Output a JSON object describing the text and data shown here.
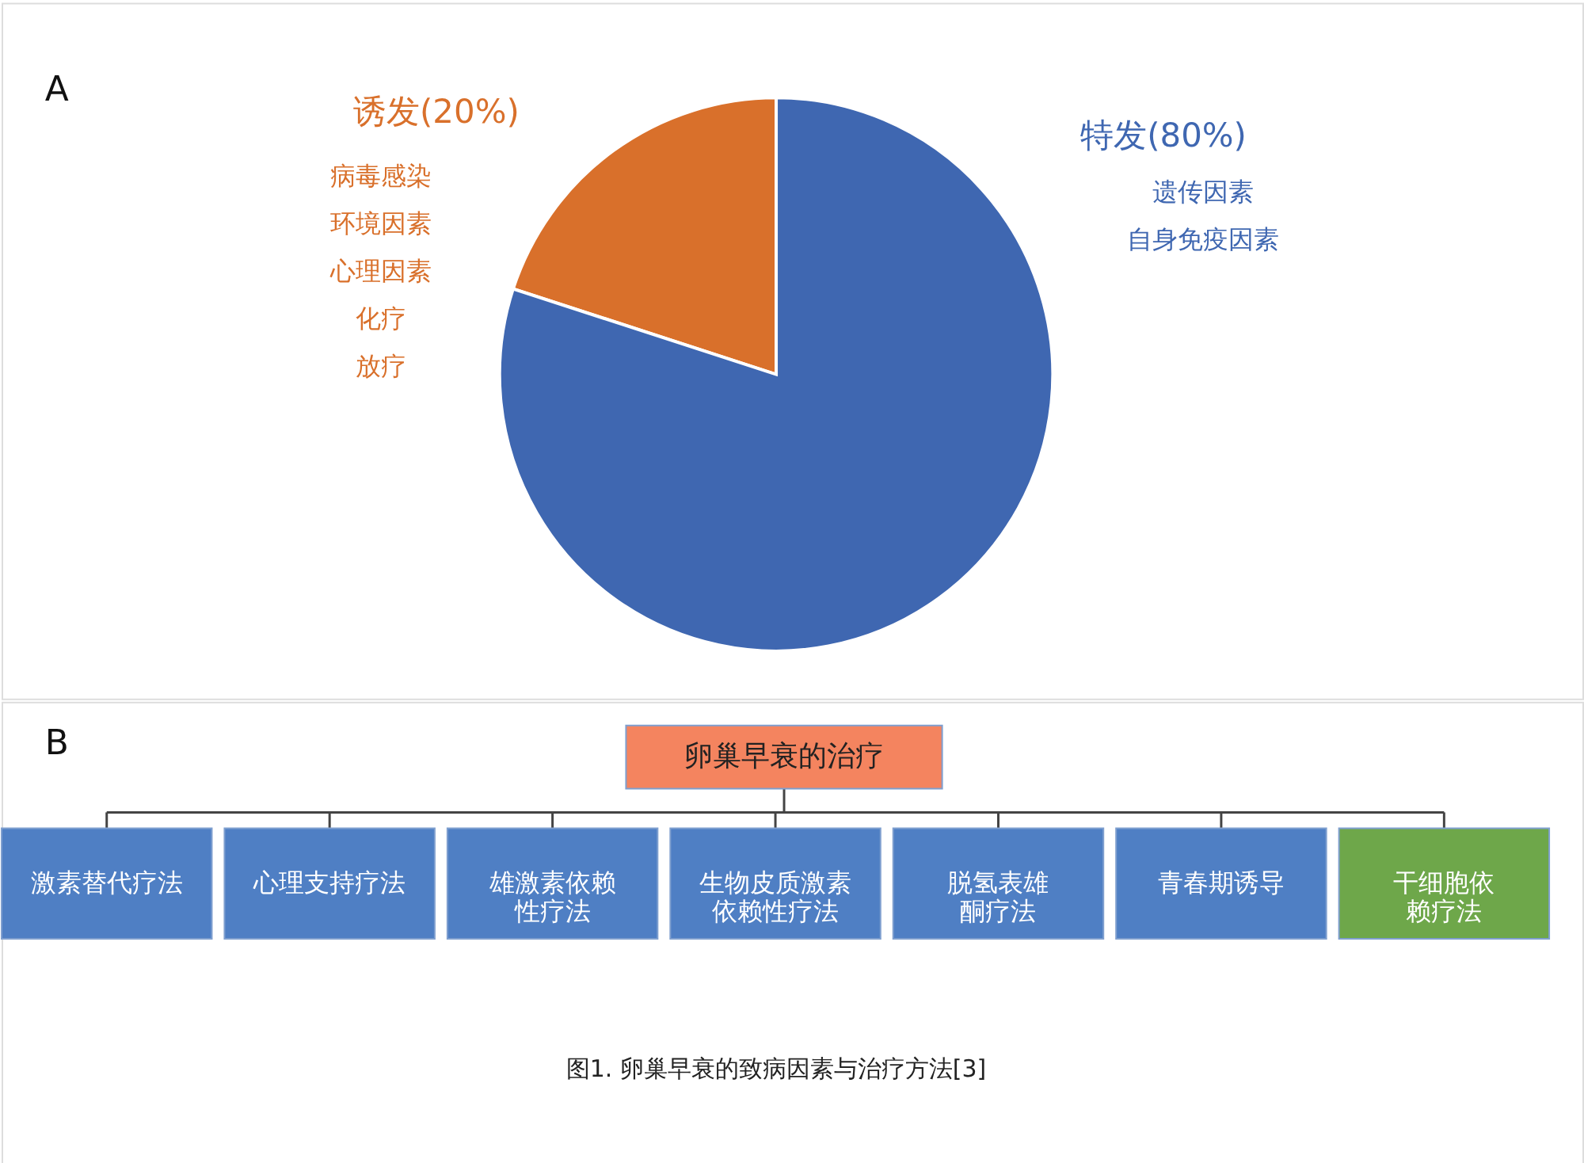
{
  "chart_data": [
    {
      "type": "pie",
      "categories": [
        "诱发(20%)",
        "特发(80%)"
      ],
      "values": [
        20,
        80
      ],
      "colors": [
        "#d9702b",
        "#3f67b1"
      ],
      "annotations": [
        "A",
        "病毒感染",
        "环境因素",
        "心理因素",
        "化疗",
        "放疗",
        "遗传因素",
        "自身免疫因素"
      ]
    },
    {
      "type": "other",
      "title": "卵巢早衰的治疗",
      "categories": [
        "激素替代疗法",
        "心理支持疗法",
        "雄激素依赖性疗法",
        "生物皮质激素依赖性疗法",
        "脱氢表雄酮疗法",
        "青春期诱导",
        "干细胞依赖疗法"
      ],
      "colors": [
        "#4f7fc4",
        "#4f7fc4",
        "#4f7fc4",
        "#4f7fc4",
        "#4f7fc4",
        "#4f7fc4",
        "#6ea74a"
      ],
      "annotations": [
        "B",
        "图1. 卵巢早衰的致病因素与治疗方法[3]"
      ]
    }
  ]
}
